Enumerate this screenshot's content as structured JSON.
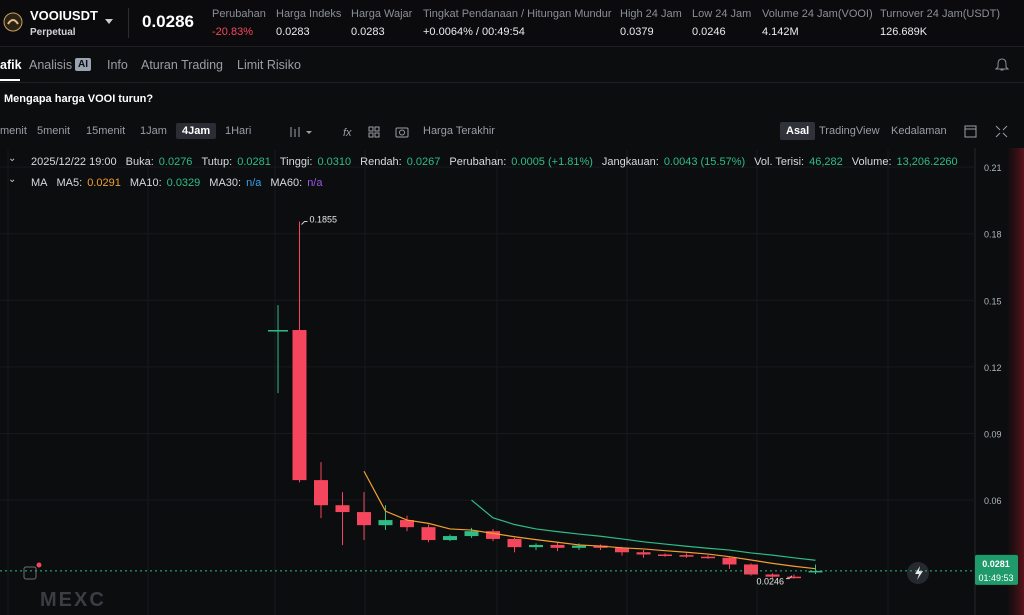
{
  "header": {
    "symbol": "VOOIUSDT",
    "subtitle": "Perpetual",
    "price": "0.0286",
    "stats": [
      {
        "label": "Perubahan",
        "value": "-20.83%",
        "color": "#f6465d"
      },
      {
        "label": "Harga Indeks",
        "value": "0.0283"
      },
      {
        "label": "Harga Wajar",
        "value": "0.0283"
      },
      {
        "label": "Tingkat Pendanaan / Hitungan Mundur",
        "value": "+0.0064% / 00:49:54"
      },
      {
        "label": "High 24 Jam",
        "value": "0.0379"
      },
      {
        "label": "Low 24 Jam",
        "value": "0.0246"
      },
      {
        "label": "Volume 24 Jam(VOOI)",
        "value": "4.142M"
      },
      {
        "label": "Turnover 24 Jam(USDT)",
        "value": "126.689K"
      }
    ]
  },
  "tabs": [
    "afik",
    "Analisis",
    "AI",
    "Info",
    "Aturan Trading",
    "Limit Risiko"
  ],
  "banner": "Mengapa harga VOOI turun?",
  "toolbar": {
    "intervals": [
      "menit",
      "5menit",
      "15menit",
      "1Jam",
      "4Jam",
      "1Hari"
    ],
    "price_type": "Harga Terakhir",
    "views": [
      "Asal",
      "TradingView",
      "Kedalaman"
    ]
  },
  "info_line": {
    "date": "2025/12/22 19:00",
    "fields": [
      {
        "label": "Buka:",
        "value": "0.0276"
      },
      {
        "label": "Tutup:",
        "value": "0.0281"
      },
      {
        "label": "Tinggi:",
        "value": "0.0310"
      },
      {
        "label": "Rendah:",
        "value": "0.0267"
      },
      {
        "label": "Perubahan:",
        "value": "0.0005 (+1.81%)"
      },
      {
        "label": "Jangkauan:",
        "value": "0.0043 (15.57%)"
      },
      {
        "label": "Vol. Terisi:",
        "value": "46,282"
      },
      {
        "label": "Volume:",
        "value": "13,206.2260"
      }
    ]
  },
  "ma_legend": {
    "title": "MA",
    "items": [
      {
        "label": "MA5:",
        "value": "0.0291",
        "color": "#f0a030"
      },
      {
        "label": "MA10:",
        "value": "0.0329",
        "color": "#2ebd85"
      },
      {
        "label": "MA30:",
        "value": "n/a",
        "color": "#3aa0e8"
      },
      {
        "label": "MA60:",
        "value": "n/a",
        "color": "#9b59e8"
      }
    ]
  },
  "chart_data": {
    "type": "candlestick",
    "open": [
      0.1366,
      0.1366,
      0.069,
      0.0577,
      0.0546,
      0.0487,
      0.051,
      0.0478,
      0.042,
      0.0438,
      0.046,
      0.0425,
      0.0388,
      0.0398,
      0.0385,
      0.0395,
      0.0385,
      0.0365,
      0.0355,
      0.0352,
      0.0345,
      0.034,
      0.031,
      0.0265,
      0.0255,
      0.0276
    ],
    "high": [
      0.1478,
      0.1855,
      0.0771,
      0.0636,
      0.0636,
      0.0577,
      0.053,
      0.049,
      0.0445,
      0.0475,
      0.047,
      0.043,
      0.0405,
      0.041,
      0.0405,
      0.04,
      0.039,
      0.0375,
      0.036,
      0.036,
      0.0352,
      0.0345,
      0.0315,
      0.027,
      0.0265,
      0.031
    ],
    "low": [
      0.1082,
      0.068,
      0.0519,
      0.0397,
      0.042,
      0.0465,
      0.046,
      0.041,
      0.0415,
      0.043,
      0.0415,
      0.0365,
      0.0375,
      0.037,
      0.0375,
      0.0375,
      0.035,
      0.034,
      0.0345,
      0.034,
      0.0335,
      0.029,
      0.026,
      0.025,
      0.0246,
      0.0267
    ],
    "close": [
      0.1366,
      0.069,
      0.0577,
      0.0546,
      0.0487,
      0.051,
      0.0478,
      0.042,
      0.0438,
      0.046,
      0.0425,
      0.0388,
      0.0398,
      0.0385,
      0.0395,
      0.0385,
      0.0365,
      0.0355,
      0.0352,
      0.0345,
      0.034,
      0.031,
      0.0265,
      0.0255,
      0.025,
      0.0281
    ],
    "series": [
      {
        "name": "MA5",
        "color": "#f0a030",
        "values": [
          null,
          null,
          null,
          null,
          0.073,
          0.055,
          0.051,
          0.0495,
          0.047,
          0.0465,
          0.045,
          0.0435,
          0.0422,
          0.041,
          0.0398,
          0.0393,
          0.0385,
          0.038,
          0.0372,
          0.0365,
          0.0357,
          0.0345,
          0.033,
          0.0315,
          0.0302,
          0.0291
        ]
      },
      {
        "name": "MA10",
        "color": "#2ebd85",
        "values": [
          null,
          null,
          null,
          null,
          null,
          null,
          null,
          null,
          null,
          0.06,
          0.052,
          0.049,
          0.047,
          0.0458,
          0.0447,
          0.0437,
          0.0425,
          0.0412,
          0.0402,
          0.0392,
          0.0383,
          0.0375,
          0.0362,
          0.0352,
          0.034,
          0.0329
        ]
      }
    ],
    "up_color": "#2ebd85",
    "down_color": "#f6465d",
    "ylim": [
      0.0195,
      0.2177
    ],
    "yticks": [
      0.06,
      0.09,
      0.12,
      0.15,
      0.18,
      0.21
    ],
    "max_label": "0.1855",
    "min_label": "0.0246",
    "last_price": 0.0281,
    "countdown": "01:49:53",
    "watermark": "MEXC"
  }
}
